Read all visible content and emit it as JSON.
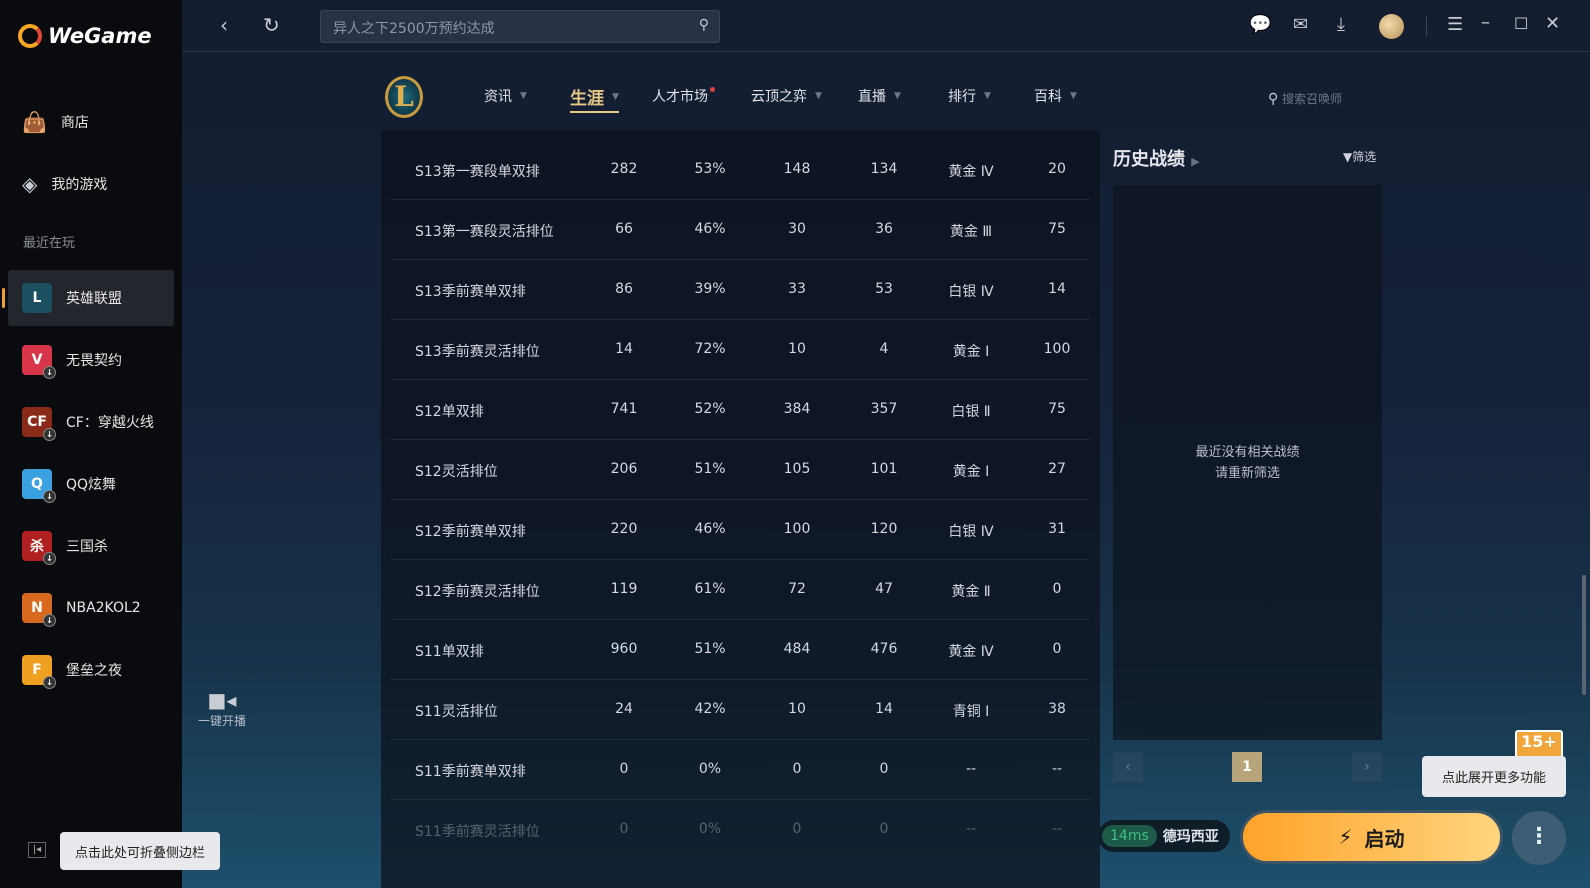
{
  "app": {
    "name": "WeGame"
  },
  "sidebar": {
    "items": [
      {
        "label": "商店",
        "icon": "bag-icon"
      },
      {
        "label": "我的游戏",
        "icon": "gamepad-icon"
      }
    ],
    "recent_label": "最近在玩",
    "games": [
      {
        "label": "英雄联盟",
        "icon": "L",
        "color": "#1c5060",
        "selected": true
      },
      {
        "label": "无畏契约",
        "icon": "V",
        "color": "#d8344a"
      },
      {
        "label": "CF：穿越火线",
        "icon": "CF",
        "color": "#8a2a18"
      },
      {
        "label": "QQ炫舞",
        "icon": "Q",
        "color": "#3aa0e0"
      },
      {
        "label": "三国杀",
        "icon": "杀",
        "color": "#b02020"
      },
      {
        "label": "NBA2KOL2",
        "icon": "N",
        "color": "#d86a20"
      },
      {
        "label": "堡垒之夜",
        "icon": "F",
        "color": "#f0a020"
      }
    ],
    "collapse_tooltip": "点击此处可折叠侧边栏"
  },
  "topbar": {
    "search_placeholder": "异人之下2500万预约达成"
  },
  "nav": {
    "items": [
      {
        "label": "资讯"
      },
      {
        "label": "生涯",
        "active": true
      },
      {
        "label": "人才市场",
        "dot": true
      },
      {
        "label": "云顶之弈"
      },
      {
        "label": "直播"
      },
      {
        "label": "排行"
      },
      {
        "label": "百科"
      }
    ],
    "summoner_search_placeholder": "搜索召唤师"
  },
  "live": {
    "label": "一键开播"
  },
  "table": {
    "rows": [
      [
        "S13第一赛段单双排",
        "282",
        "53%",
        "148",
        "134",
        "黄金 Ⅳ",
        "20"
      ],
      [
        "S13第一赛段灵活排位",
        "66",
        "46%",
        "30",
        "36",
        "黄金 Ⅲ",
        "75"
      ],
      [
        "S13季前赛单双排",
        "86",
        "39%",
        "33",
        "53",
        "白银 Ⅳ",
        "14"
      ],
      [
        "S13季前赛灵活排位",
        "14",
        "72%",
        "10",
        "4",
        "黄金 Ⅰ",
        "100"
      ],
      [
        "S12单双排",
        "741",
        "52%",
        "384",
        "357",
        "白银 Ⅱ",
        "75"
      ],
      [
        "S12灵活排位",
        "206",
        "51%",
        "105",
        "101",
        "黄金 Ⅰ",
        "27"
      ],
      [
        "S12季前赛单双排",
        "220",
        "46%",
        "100",
        "120",
        "白银 Ⅳ",
        "31"
      ],
      [
        "S12季前赛灵活排位",
        "119",
        "61%",
        "72",
        "47",
        "黄金 Ⅱ",
        "0"
      ],
      [
        "S11单双排",
        "960",
        "51%",
        "484",
        "476",
        "黄金 Ⅳ",
        "0"
      ],
      [
        "S11灵活排位",
        "24",
        "42%",
        "10",
        "14",
        "青铜 Ⅰ",
        "38"
      ],
      [
        "S11季前赛单双排",
        "0",
        "0%",
        "0",
        "0",
        "--",
        "--"
      ],
      [
        "S11季前赛灵活排位",
        "0",
        "0%",
        "0",
        "0",
        "--",
        "--"
      ]
    ]
  },
  "history": {
    "title": "历史战绩",
    "filter_label": "筛选",
    "empty_line1": "最近没有相关战绩",
    "empty_line2": "请重新筛选",
    "page": "1"
  },
  "bottom": {
    "ping": "14ms",
    "server": "德玛西亚",
    "launch_label": "启动",
    "more_tooltip": "点此展开更多功能",
    "badge": "15+"
  }
}
